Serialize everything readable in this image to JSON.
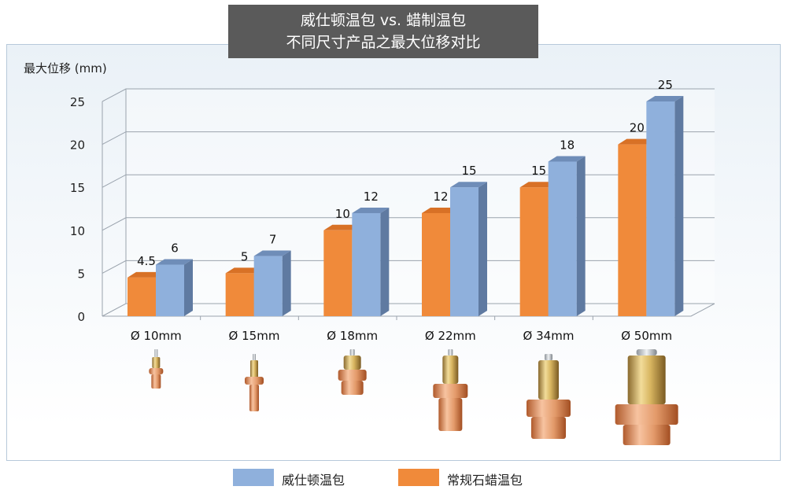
{
  "title": {
    "line1": "威仕顿温包 vs. 蜡制温包",
    "line2": "不同尺寸产品之最大位移对比"
  },
  "chart_data": {
    "type": "bar",
    "ylabel": "最大位移 (mm)",
    "ylim": [
      0,
      25
    ],
    "yticks": [
      0,
      5,
      10,
      15,
      20,
      25
    ],
    "grid": true,
    "categories": [
      "Ø 10mm",
      "Ø 15mm",
      "Ø 18mm",
      "Ø 22mm",
      "Ø 34mm",
      "Ø 50mm"
    ],
    "series": [
      {
        "name": "常规石蜡温包",
        "values": [
          4.5,
          5,
          10,
          12,
          15,
          20
        ],
        "labels": [
          "4.5",
          "5",
          "10",
          "12",
          "15",
          "20"
        ]
      },
      {
        "name": "威仕顿温包",
        "values": [
          6,
          7,
          12,
          15,
          18,
          25
        ],
        "labels": [
          "6",
          "7",
          "12",
          "15",
          "18",
          "25"
        ]
      }
    ],
    "legend_order": [
      1,
      0
    ],
    "legend_position": "bottom"
  },
  "colors": {
    "orange_front": "#f08a3a",
    "orange_top": "#d87126",
    "orange_side": "#c25f18",
    "blue_front": "#8fb0dc",
    "blue_top": "#6f8db8",
    "blue_side": "#5f7aa1",
    "grid": "#9aa3ad"
  },
  "products": {
    "images": [
      "brass-copper-thermal-element-icon",
      "brass-copper-thermal-element-icon",
      "brass-copper-thermal-element-icon",
      "brass-copper-thermal-element-icon",
      "brass-copper-thermal-element-icon",
      "brass-copper-thermal-element-icon"
    ]
  }
}
